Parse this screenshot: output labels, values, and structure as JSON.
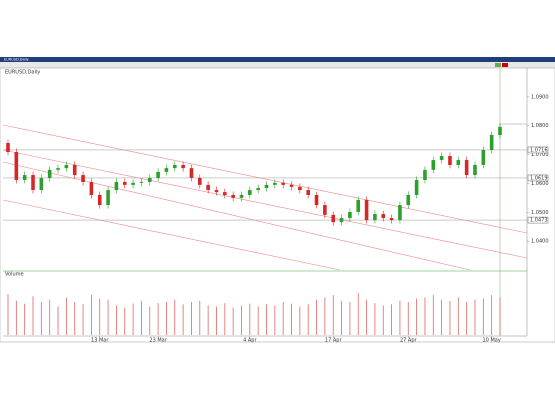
{
  "chart_data": {
    "type": "candlestick",
    "window_title": "EURUSD,Daily",
    "chart_label": "EURUSD,Daily",
    "volume_label": "Volume",
    "categories": [
      null,
      null,
      null,
      null,
      null,
      null,
      null,
      null,
      null,
      null,
      null,
      "13 Mar",
      null,
      null,
      null,
      null,
      null,
      null,
      "23 Mar",
      null,
      null,
      null,
      null,
      null,
      null,
      null,
      null,
      null,
      null,
      "4 Apr",
      null,
      null,
      null,
      null,
      null,
      null,
      null,
      null,
      null,
      "17 Apr",
      null,
      null,
      null,
      null,
      null,
      null,
      null,
      null,
      "27 Apr",
      null,
      null,
      null,
      null,
      null,
      null,
      null,
      null,
      null,
      "10 May",
      null
    ],
    "open": [
      1.074,
      1.0709,
      1.0612,
      1.0629,
      1.0577,
      1.0619,
      1.0647,
      1.0653,
      1.0664,
      1.0629,
      1.0605,
      1.056,
      1.0525,
      1.0577,
      1.0605,
      1.0595,
      1.0602,
      1.0605,
      1.0619,
      1.064,
      1.0653,
      1.0664,
      1.0653,
      1.0619,
      1.0595,
      1.0577,
      1.057,
      1.056,
      1.055,
      1.056,
      1.0577,
      1.0584,
      1.0595,
      1.0602,
      1.0595,
      1.0588,
      1.0577,
      1.056,
      1.0525,
      1.0491,
      1.0466,
      1.048,
      1.0501,
      1.0543,
      1.0473,
      1.0494,
      1.048,
      1.0473,
      1.0525,
      1.056,
      1.0612,
      1.0647,
      1.0681,
      1.0695,
      1.0664,
      1.0681,
      1.0629,
      1.0664,
      1.0716,
      1.0768
    ],
    "high": [
      1.0752,
      1.0721,
      1.0641,
      1.0641,
      1.0631,
      1.0659,
      1.0665,
      1.0676,
      1.0676,
      1.0641,
      1.0617,
      1.0572,
      1.0589,
      1.0617,
      1.0617,
      1.0614,
      1.0617,
      1.0631,
      1.0652,
      1.0665,
      1.0676,
      1.0676,
      1.0665,
      1.0631,
      1.0607,
      1.0589,
      1.0582,
      1.0572,
      1.0572,
      1.0589,
      1.0596,
      1.0607,
      1.0614,
      1.0614,
      1.0607,
      1.06,
      1.0589,
      1.0572,
      1.0537,
      1.0503,
      1.0492,
      1.0513,
      1.0555,
      1.0555,
      1.0506,
      1.0506,
      1.0492,
      1.0537,
      1.0572,
      1.0624,
      1.0659,
      1.0693,
      1.0707,
      1.0707,
      1.0693,
      1.0693,
      1.0676,
      1.0728,
      1.078,
      1.0808
    ],
    "low": [
      1.0697,
      1.06,
      1.06,
      1.0565,
      1.0565,
      1.0607,
      1.0635,
      1.0641,
      1.0617,
      1.0593,
      1.0548,
      1.0513,
      1.0513,
      1.0565,
      1.0583,
      1.0583,
      1.059,
      1.0593,
      1.0607,
      1.0628,
      1.0641,
      1.0641,
      1.0607,
      1.0583,
      1.0565,
      1.0558,
      1.0548,
      1.0538,
      1.0538,
      1.0548,
      1.0565,
      1.0572,
      1.0583,
      1.0583,
      1.0576,
      1.0565,
      1.0548,
      1.0513,
      1.0479,
      1.0454,
      1.0454,
      1.0468,
      1.0489,
      1.0461,
      1.0461,
      1.0468,
      1.0461,
      1.0461,
      1.0513,
      1.0548,
      1.06,
      1.0635,
      1.0669,
      1.0652,
      1.0652,
      1.0617,
      1.0617,
      1.0652,
      1.0704,
      1.0756
    ],
    "close": [
      1.0709,
      1.0612,
      1.0629,
      1.0577,
      1.0619,
      1.0647,
      1.0653,
      1.0664,
      1.0629,
      1.0605,
      1.056,
      1.0525,
      1.0577,
      1.0605,
      1.0595,
      1.0602,
      1.0605,
      1.0619,
      1.064,
      1.0653,
      1.0664,
      1.0653,
      1.0619,
      1.0595,
      1.0577,
      1.057,
      1.056,
      1.055,
      1.056,
      1.0577,
      1.0584,
      1.0595,
      1.0602,
      1.0595,
      1.0588,
      1.0577,
      1.056,
      1.0525,
      1.0491,
      1.0466,
      1.048,
      1.0501,
      1.0543,
      1.0473,
      1.0494,
      1.048,
      1.0473,
      1.0525,
      1.056,
      1.0612,
      1.0647,
      1.0681,
      1.0695,
      1.0664,
      1.0681,
      1.0629,
      1.0664,
      1.0716,
      1.0768,
      1.0796
    ],
    "up_color": "#2ca02c",
    "down_color": "#d62728",
    "ylim": [
      1.03,
      1.1
    ],
    "yticks": [
      {
        "value": 1.04,
        "label": "1.0400"
      },
      {
        "value": 1.05,
        "label": "1.0500"
      },
      {
        "value": 1.06,
        "label": "1.0600"
      },
      {
        "value": 1.07,
        "label": "1.0700"
      },
      {
        "value": 1.08,
        "label": "1.0800"
      },
      {
        "value": 1.09,
        "label": "1.0900"
      }
    ],
    "levels": [
      1.0716,
      1.0619,
      1.0473
    ],
    "volume": {
      "color": "#e06666",
      "ylim": [
        0,
        100
      ],
      "values": [
        72,
        60,
        55,
        68,
        58,
        62,
        50,
        66,
        58,
        54,
        70,
        64,
        62,
        52,
        48,
        55,
        60,
        50,
        56,
        58,
        62,
        54,
        58,
        60,
        52,
        50,
        56,
        48,
        52,
        55,
        50,
        54,
        52,
        58,
        55,
        50,
        54,
        62,
        66,
        70,
        60,
        58,
        74,
        62,
        56,
        52,
        54,
        60,
        58,
        64,
        66,
        70,
        62,
        60,
        66,
        58,
        62,
        64,
        70,
        66
      ]
    }
  }
}
